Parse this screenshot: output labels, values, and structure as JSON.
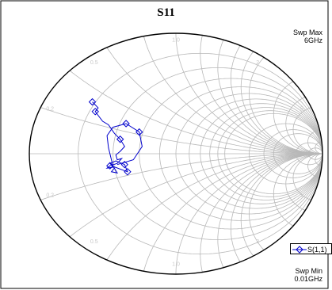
{
  "chart_data": {
    "type": "smith-chart",
    "title": "S11",
    "sweep": {
      "max_label": "Swp Max",
      "max_value": "6GHz",
      "min_label": "Swp Min",
      "min_value": "0.01GHz"
    },
    "grid": true,
    "legend_position": "bottom-right",
    "series": [
      {
        "name": "S(1,1)",
        "color": "#0000cc",
        "marker": "diamond",
        "points": [
          [
            -0.57,
            0.43
          ],
          [
            -0.53,
            0.38
          ],
          [
            -0.55,
            0.35
          ],
          [
            -0.5,
            0.27
          ],
          [
            -0.46,
            0.24
          ],
          [
            -0.42,
            0.17
          ],
          [
            -0.38,
            0.12
          ],
          [
            -0.35,
            0.06
          ],
          [
            -0.38,
            0.02
          ],
          [
            -0.41,
            -0.01
          ],
          [
            -0.4,
            -0.05
          ],
          [
            -0.37,
            -0.04
          ],
          [
            -0.4,
            -0.08
          ],
          [
            -0.45,
            -0.1
          ],
          [
            -0.47,
            -0.12
          ],
          [
            -0.42,
            -0.11
          ],
          [
            -0.33,
            -0.15
          ],
          [
            -0.35,
            -0.09
          ],
          [
            -0.41,
            -0.06
          ],
          [
            -0.45,
            -0.08
          ],
          [
            -0.42,
            -0.12
          ],
          [
            -0.44,
            -0.15
          ],
          [
            -0.4,
            -0.16
          ],
          [
            -0.43,
            -0.1
          ],
          [
            -0.44,
            -0.05
          ],
          [
            -0.46,
            0.05
          ],
          [
            -0.47,
            0.15
          ],
          [
            -0.43,
            0.22
          ],
          [
            -0.34,
            0.25
          ],
          [
            -0.25,
            0.18
          ],
          [
            -0.23,
            0.06
          ],
          [
            -0.29,
            -0.05
          ],
          [
            -0.4,
            -0.09
          ]
        ],
        "marker_indices": [
          0,
          2,
          6,
          13,
          16,
          17,
          28,
          29
        ]
      }
    ]
  }
}
